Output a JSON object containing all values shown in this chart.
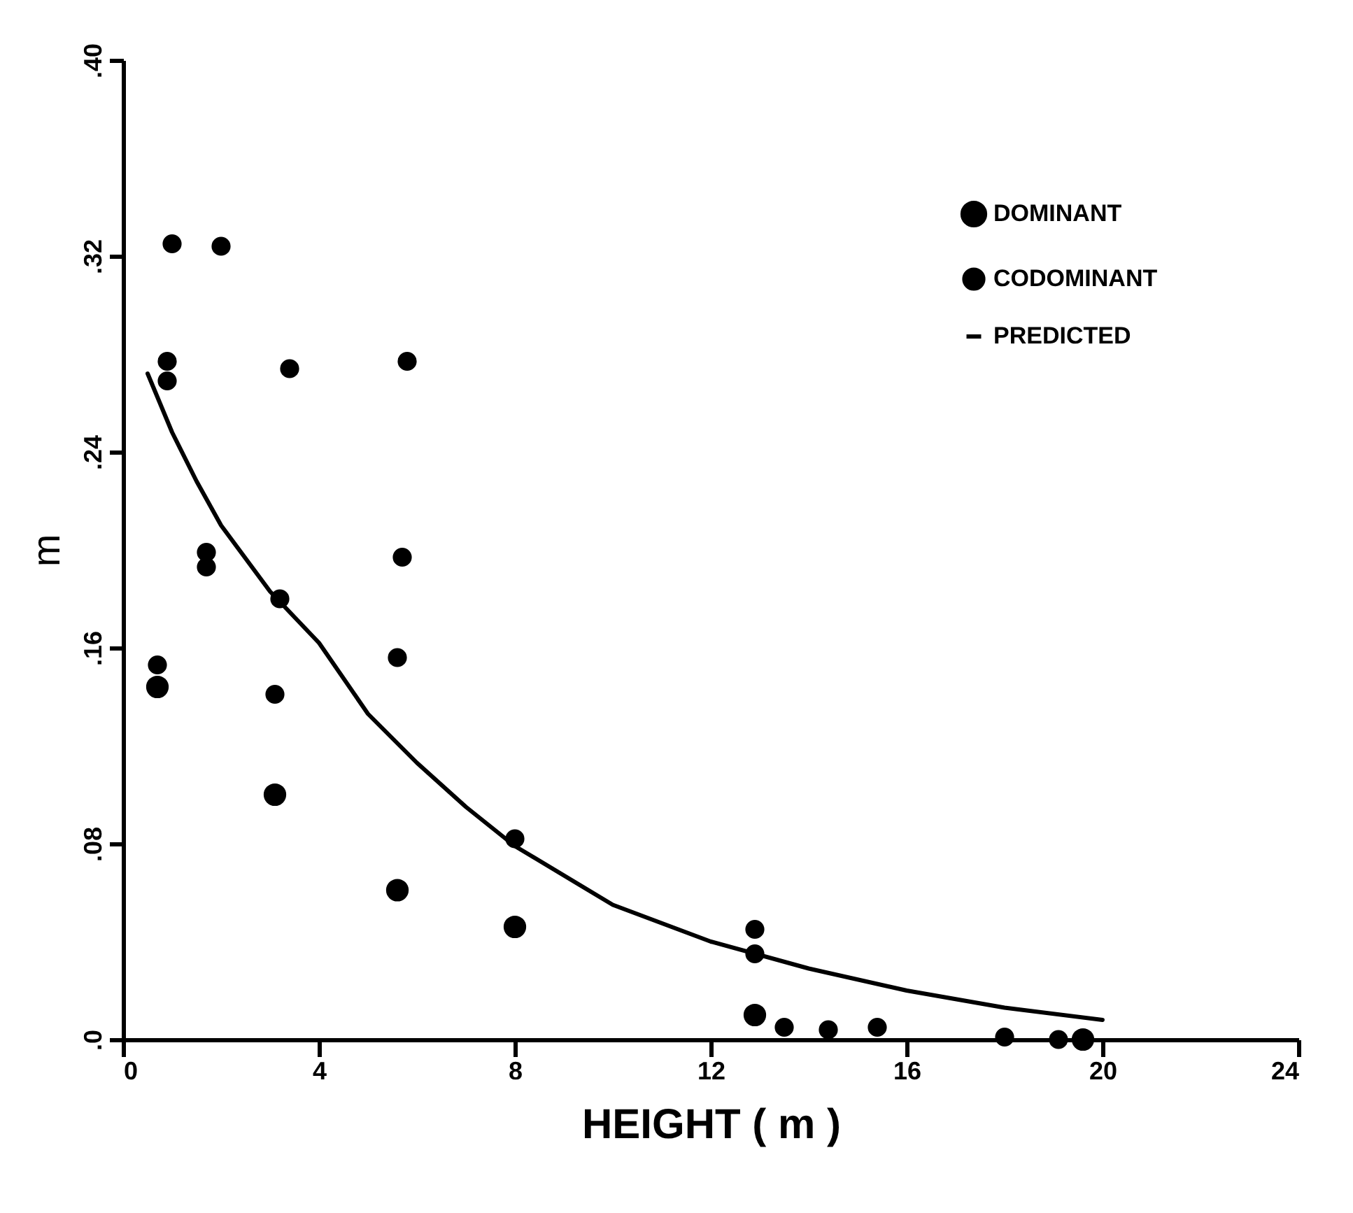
{
  "chart_data": {
    "type": "scatter",
    "xlabel": "HEIGHT ( m )",
    "ylabel": "m",
    "xlim": [
      0,
      24
    ],
    "xticks": [
      0,
      4,
      8,
      12,
      16,
      20,
      24
    ],
    "ylim": [
      0,
      0.4
    ],
    "yticks": [
      {
        "value": 0,
        "label": ".0"
      },
      {
        "value": 0.08,
        "label": ".08"
      },
      {
        "value": 0.16,
        "label": ".16"
      },
      {
        "value": 0.24,
        "label": ".24"
      },
      {
        "value": 0.32,
        "label": ".32"
      },
      {
        "value": 0.4,
        "label": ".40"
      }
    ],
    "grid": false,
    "legend": "top right",
    "marker": "circle",
    "series": [
      {
        "name": "DOMINANT",
        "color": "#000000",
        "x": [
          0.7,
          3.1,
          5.6,
          8.0,
          12.9,
          19.6
        ],
        "values": [
          0.144,
          0.1,
          0.061,
          0.046,
          0.01,
          0.0
        ]
      },
      {
        "name": "CODOMINANT",
        "color": "#000000",
        "x": [
          0.7,
          1.0,
          2.0,
          0.9,
          0.9,
          3.4,
          5.8,
          1.7,
          1.7,
          3.2,
          3.1,
          5.7,
          5.6,
          8.0,
          12.9,
          12.9,
          13.5,
          14.4,
          15.4,
          18.0,
          19.1
        ],
        "values": [
          0.153,
          0.325,
          0.324,
          0.277,
          0.269,
          0.274,
          0.277,
          0.199,
          0.193,
          0.18,
          0.141,
          0.197,
          0.156,
          0.082,
          0.045,
          0.035,
          0.005,
          0.004,
          0.005,
          0.001,
          0.0
        ]
      },
      {
        "name": "PREDICTED",
        "color": "#000000",
        "type": "line",
        "marker": "none",
        "line_style": "solid",
        "x": [
          0.5,
          1.0,
          1.5,
          2.0,
          3.0,
          4.0,
          5.0,
          6.0,
          7.0,
          8.0,
          10.0,
          12.0,
          14.0,
          16.0,
          18.0,
          20.0
        ],
        "values": [
          0.272,
          0.248,
          0.228,
          0.21,
          0.183,
          0.162,
          0.133,
          0.113,
          0.095,
          0.079,
          0.055,
          0.04,
          0.029,
          0.02,
          0.013,
          0.008
        ]
      }
    ]
  }
}
